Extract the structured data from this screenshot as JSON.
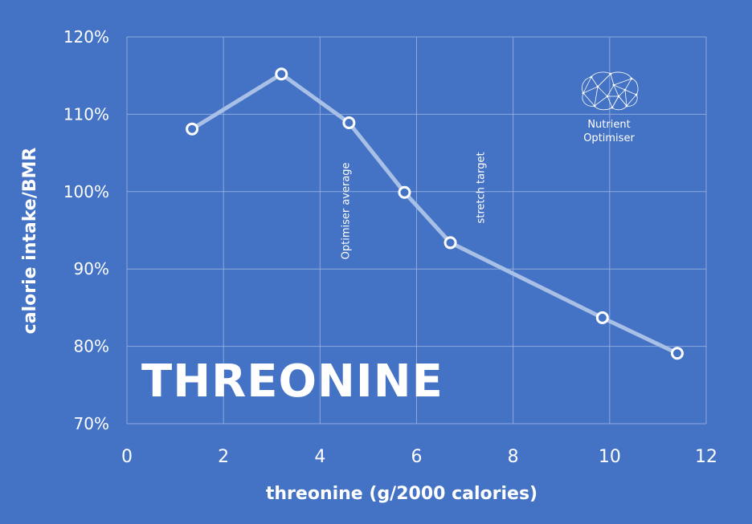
{
  "chart_data": {
    "type": "line",
    "overlay_title": "THREONINE",
    "xlabel": "threonine (g/2000 calories)",
    "ylabel": "calorie intake/BMR",
    "xlim": [
      0,
      12
    ],
    "ylim": [
      70,
      120
    ],
    "x_ticks": [
      "0",
      "2",
      "4",
      "6",
      "8",
      "10",
      "12"
    ],
    "y_ticks": [
      "70%",
      "80%",
      "90%",
      "100%",
      "110%",
      "120%"
    ],
    "grid": true,
    "series": [
      {
        "points": [
          {
            "x": 1.35,
            "y": 108.1
          },
          {
            "x": 3.2,
            "y": 115.2
          },
          {
            "x": 4.6,
            "y": 108.9
          },
          {
            "x": 5.75,
            "y": 99.9
          },
          {
            "x": 6.7,
            "y": 93.4
          },
          {
            "x": 9.85,
            "y": 83.7
          },
          {
            "x": 11.4,
            "y": 79.1
          }
        ]
      }
    ],
    "annotations": [
      {
        "text": "Optimiser average",
        "x": 4.6,
        "y": 97.5
      },
      {
        "text": "stretch target",
        "x": 7.4,
        "y": 100.5
      }
    ],
    "colors": {
      "background": "#4472c4",
      "grid": "#8eaadb",
      "line": "#a9c0e6",
      "marker": "#ffffff"
    }
  },
  "logo": {
    "line1": "Nutrient",
    "line2": "Optimiser"
  }
}
